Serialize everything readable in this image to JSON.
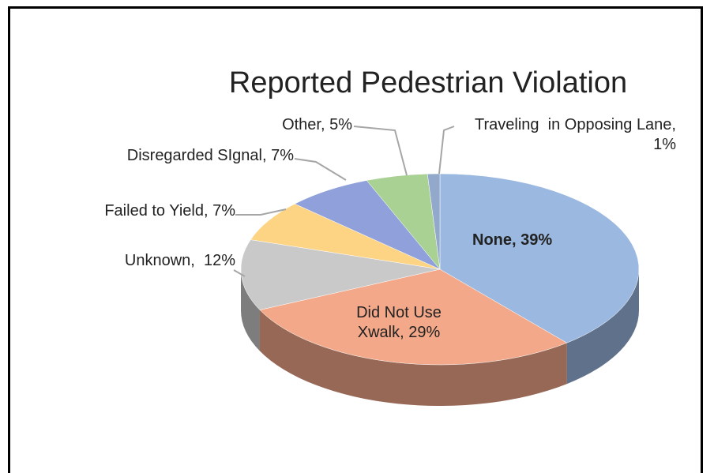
{
  "chart_data": {
    "type": "pie",
    "title": "Reported Pedestrian Violation",
    "values": [
      39,
      29,
      12,
      7,
      7,
      5,
      1
    ],
    "value_labels": [
      "None, 39%",
      "Did Not Use Xwalk, 29%",
      "Unknown,  12%",
      "Failed to Yield, 7%",
      "Disregarded SIgnal, 7%",
      "Other, 5%",
      "Traveling  in Opposing Lane, 1%"
    ],
    "colors": [
      "#9bb8e0",
      "#f2a889",
      "#c9c9c9",
      "#fdd484",
      "#8fa0da",
      "#a8d193",
      "#93a9cc"
    ]
  }
}
